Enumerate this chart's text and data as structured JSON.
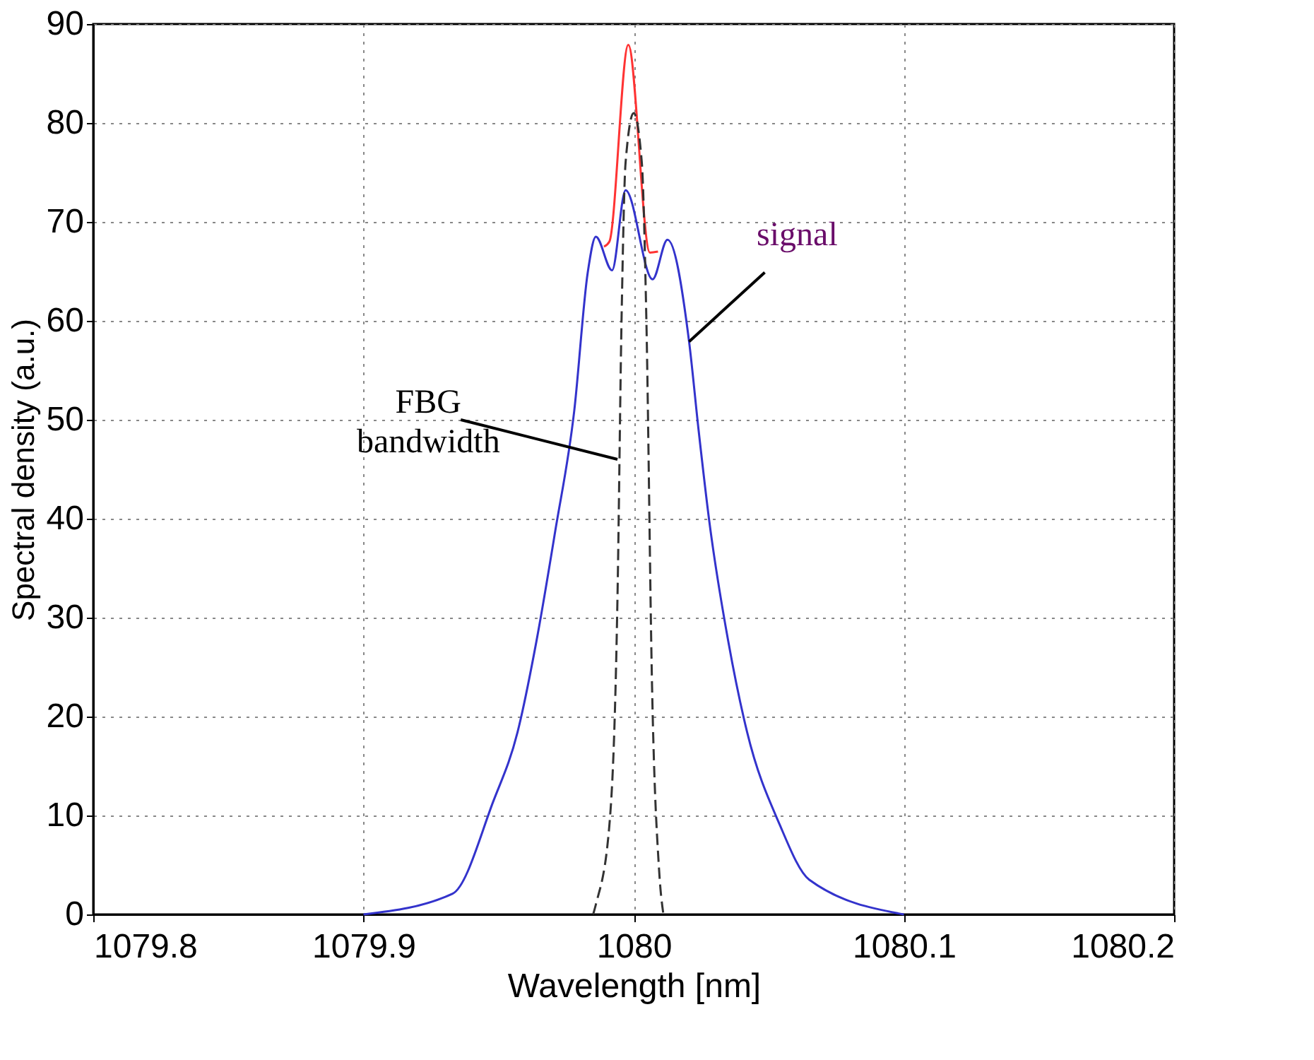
{
  "chart_data": {
    "type": "line",
    "xlabel": "Wavelength [nm]",
    "ylabel": "Spectral density (a.u.)",
    "xlim": [
      1079.8,
      1080.2
    ],
    "xticks": [
      1079.8,
      1079.9,
      1080,
      1080.1,
      1080.2
    ],
    "ylim": [
      0,
      90
    ],
    "yticks": [
      0,
      10,
      20,
      30,
      40,
      50,
      60,
      70,
      80,
      90
    ],
    "grid": true,
    "series": [
      {
        "color": "#ff3333",
        "x": [
          1079.989,
          1079.991,
          1079.998,
          1080.006,
          1080.009
        ],
        "values": [
          67.5,
          68,
          87.9,
          66.9,
          67
        ]
      },
      {
        "color": "#3333cc",
        "x": [
          1079.9,
          1079.933,
          1079.948,
          1079.957,
          1079.964,
          1079.971,
          1079.978,
          1079.983,
          1079.986,
          1079.992,
          1079.997,
          1080.007,
          1080.0125,
          1080.0205,
          1080.024,
          1080.028,
          1080.035,
          1080.042,
          1080.054,
          1080.065,
          1080.1
        ],
        "values": [
          0,
          2.1,
          11.4,
          18.4,
          27.6,
          38.8,
          50.9,
          64.9,
          68.5,
          65.1,
          73.2,
          64.2,
          68.2,
          57.9,
          49,
          39.7,
          27.6,
          18.4,
          9.1,
          3.5,
          0
        ]
      },
      {
        "color": "#333333",
        "line_style": "dashed",
        "x": [
          1079.985,
          1079.986,
          1079.991,
          1079.994,
          1079.9955,
          1079.997,
          1080,
          1080.003,
          1080.0047,
          1080.0068,
          1080.0094,
          1080.011
        ],
        "values": [
          0,
          1,
          9,
          32,
          60,
          76,
          81,
          76,
          60,
          23,
          4.5,
          0
        ]
      }
    ],
    "annotations": [
      {
        "text": "signal",
        "x": 1080.0205,
        "y": 57.9
      },
      {
        "text": "FBG\nbandwidth",
        "x": 1079.994,
        "y": 46
      }
    ]
  }
}
